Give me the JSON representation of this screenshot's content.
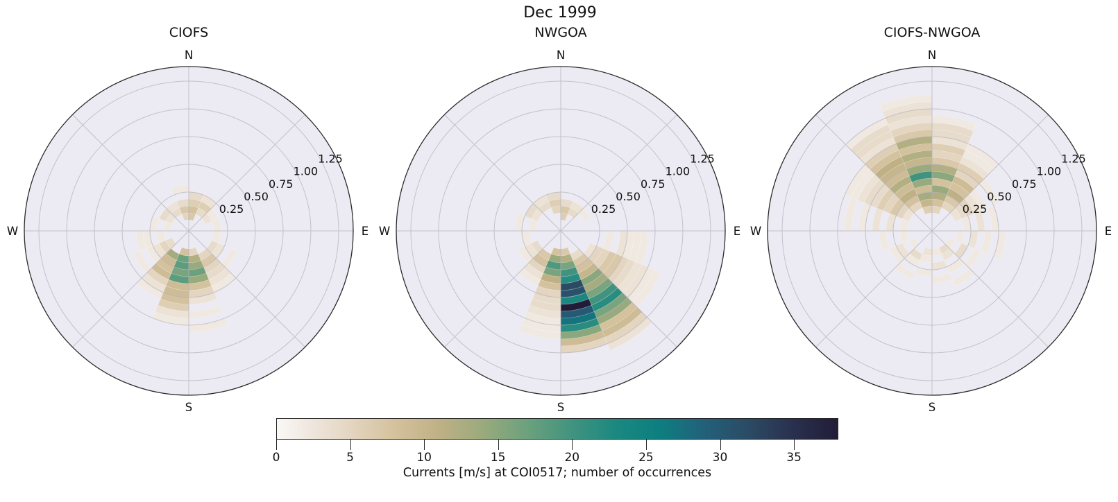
{
  "figure": {
    "suptitle": "Dec 1999"
  },
  "style": {
    "polar_bg": "#eceaf2",
    "grid_color": "#a9a7b2",
    "spine_color": "#2b2b2b",
    "text_color": "#111111",
    "figure_bg": "#ffffff"
  },
  "compass": {
    "n": "N",
    "e": "E",
    "s": "S",
    "w": "W"
  },
  "radial_tick_labels": [
    "0.25",
    "0.50",
    "0.75",
    "1.00",
    "1.25"
  ],
  "colorbar": {
    "label": "Currents [m/s] at COI0517; number of occurrences",
    "ticks": [
      0,
      5,
      10,
      15,
      20,
      25,
      30,
      35
    ],
    "vmin": 0,
    "vmax": 38,
    "stops": [
      [
        0,
        "#faf8f6"
      ],
      [
        2,
        "#f0e9e1"
      ],
      [
        5,
        "#e3d5c0"
      ],
      [
        8,
        "#d4c19d"
      ],
      [
        11,
        "#bfb185"
      ],
      [
        14,
        "#99aa7d"
      ],
      [
        17,
        "#6ba17d"
      ],
      [
        20,
        "#41937f"
      ],
      [
        23,
        "#1b8880"
      ],
      [
        26,
        "#0d7e80"
      ],
      [
        29,
        "#23607a"
      ],
      [
        32,
        "#2b4a64"
      ],
      [
        35,
        "#29304e"
      ],
      [
        38,
        "#211d38"
      ]
    ]
  },
  "chart_data": [
    {
      "type": "heatmap",
      "subtype": "polar-2d-histogram",
      "title": "CIOFS",
      "direction_bin_deg": 22.5,
      "speed_bin_size": 0.0625,
      "radial_axis": {
        "ticks": [
          0.25,
          0.5,
          0.75,
          1.0,
          1.25
        ],
        "rmax": 1.4,
        "rorigin": -0.1
      },
      "note": "cells = [direction_bin (0 = N-to-NNE, clockwise, 16 bins), speed_bin (x0.0625 m/s), occurrences]",
      "cells": [
        [
          8,
          1,
          8
        ],
        [
          8,
          2,
          17
        ],
        [
          8,
          3,
          18
        ],
        [
          8,
          4,
          16
        ],
        [
          8,
          5,
          18
        ],
        [
          8,
          6,
          9
        ],
        [
          8,
          7,
          9
        ],
        [
          8,
          8,
          8
        ],
        [
          8,
          9,
          6
        ],
        [
          8,
          10,
          3
        ],
        [
          8,
          11,
          2
        ],
        [
          7,
          1,
          5
        ],
        [
          7,
          2,
          12
        ],
        [
          7,
          3,
          14
        ],
        [
          7,
          4,
          17
        ],
        [
          7,
          5,
          14
        ],
        [
          7,
          6,
          8
        ],
        [
          7,
          7,
          5
        ],
        [
          7,
          8,
          3
        ],
        [
          7,
          10,
          2
        ],
        [
          7,
          12,
          2
        ],
        [
          9,
          2,
          13
        ],
        [
          9,
          3,
          9
        ],
        [
          9,
          4,
          8
        ],
        [
          9,
          5,
          9
        ],
        [
          9,
          6,
          5
        ],
        [
          9,
          7,
          3
        ],
        [
          9,
          8,
          2
        ],
        [
          6,
          2,
          5
        ],
        [
          6,
          3,
          7
        ],
        [
          6,
          4,
          5
        ],
        [
          6,
          5,
          4
        ],
        [
          6,
          6,
          3
        ],
        [
          6,
          7,
          2
        ],
        [
          10,
          1,
          4
        ],
        [
          10,
          2,
          5
        ],
        [
          10,
          3,
          3
        ],
        [
          10,
          4,
          2
        ],
        [
          10,
          6,
          2
        ],
        [
          11,
          2,
          2
        ],
        [
          11,
          4,
          2
        ],
        [
          11,
          5,
          2
        ],
        [
          5,
          2,
          4
        ],
        [
          5,
          3,
          3
        ],
        [
          5,
          5,
          2
        ],
        [
          0,
          0,
          7
        ],
        [
          0,
          1,
          8
        ],
        [
          0,
          2,
          6
        ],
        [
          0,
          3,
          4
        ],
        [
          15,
          0,
          5
        ],
        [
          15,
          1,
          7
        ],
        [
          15,
          2,
          4
        ],
        [
          15,
          4,
          2
        ],
        [
          1,
          1,
          4
        ],
        [
          1,
          2,
          6
        ],
        [
          1,
          3,
          3
        ],
        [
          14,
          1,
          4
        ],
        [
          14,
          2,
          3
        ],
        [
          13,
          1,
          3
        ],
        [
          13,
          2,
          4
        ],
        [
          12,
          1,
          2
        ],
        [
          12,
          3,
          2
        ],
        [
          2,
          1,
          3
        ],
        [
          2,
          2,
          2
        ],
        [
          3,
          2,
          2
        ],
        [
          4,
          2,
          2
        ]
      ]
    },
    {
      "type": "heatmap",
      "subtype": "polar-2d-histogram",
      "title": "NWGOA",
      "direction_bin_deg": 22.5,
      "speed_bin_size": 0.0625,
      "radial_axis": {
        "ticks": [
          0.25,
          0.5,
          0.75,
          1.0,
          1.25
        ],
        "rmax": 1.4,
        "rorigin": -0.1
      },
      "cells": [
        [
          7,
          1,
          7
        ],
        [
          7,
          2,
          12
        ],
        [
          7,
          3,
          16
        ],
        [
          7,
          4,
          20
        ],
        [
          7,
          5,
          22
        ],
        [
          7,
          6,
          32
        ],
        [
          7,
          7,
          31
        ],
        [
          7,
          8,
          23
        ],
        [
          7,
          9,
          38
        ],
        [
          7,
          10,
          30
        ],
        [
          7,
          11,
          27
        ],
        [
          7,
          12,
          22
        ],
        [
          7,
          13,
          15
        ],
        [
          7,
          14,
          9
        ],
        [
          7,
          15,
          5
        ],
        [
          6,
          2,
          4
        ],
        [
          6,
          3,
          7
        ],
        [
          6,
          4,
          8
        ],
        [
          6,
          5,
          10
        ],
        [
          6,
          6,
          15
        ],
        [
          6,
          7,
          13
        ],
        [
          6,
          8,
          16
        ],
        [
          6,
          9,
          20
        ],
        [
          6,
          10,
          22
        ],
        [
          6,
          11,
          16
        ],
        [
          6,
          12,
          14
        ],
        [
          6,
          13,
          8
        ],
        [
          6,
          14,
          9
        ],
        [
          6,
          15,
          5
        ],
        [
          6,
          16,
          3
        ],
        [
          8,
          1,
          8
        ],
        [
          8,
          2,
          14
        ],
        [
          8,
          3,
          19
        ],
        [
          8,
          4,
          16
        ],
        [
          8,
          5,
          11
        ],
        [
          8,
          6,
          8
        ],
        [
          8,
          7,
          5
        ],
        [
          8,
          8,
          4
        ],
        [
          8,
          9,
          4
        ],
        [
          8,
          10,
          3
        ],
        [
          8,
          11,
          2
        ],
        [
          8,
          12,
          2
        ],
        [
          8,
          13,
          2
        ],
        [
          5,
          3,
          3
        ],
        [
          5,
          4,
          5
        ],
        [
          5,
          5,
          5
        ],
        [
          5,
          6,
          7
        ],
        [
          5,
          7,
          7
        ],
        [
          5,
          8,
          5
        ],
        [
          5,
          9,
          4
        ],
        [
          5,
          10,
          3
        ],
        [
          5,
          11,
          3
        ],
        [
          5,
          12,
          2
        ],
        [
          5,
          13,
          2
        ],
        [
          9,
          2,
          7
        ],
        [
          9,
          3,
          8
        ],
        [
          9,
          4,
          5
        ],
        [
          9,
          5,
          3
        ],
        [
          9,
          6,
          2
        ],
        [
          4,
          5,
          2
        ],
        [
          4,
          7,
          3
        ],
        [
          4,
          8,
          2
        ],
        [
          4,
          9,
          2
        ],
        [
          4,
          10,
          2
        ],
        [
          10,
          2,
          4
        ],
        [
          10,
          3,
          3
        ],
        [
          10,
          4,
          2
        ],
        [
          0,
          0,
          6
        ],
        [
          0,
          1,
          7
        ],
        [
          0,
          2,
          4
        ],
        [
          15,
          1,
          5
        ],
        [
          15,
          2,
          6
        ],
        [
          15,
          3,
          4
        ],
        [
          14,
          2,
          4
        ],
        [
          14,
          3,
          3
        ],
        [
          13,
          2,
          3
        ],
        [
          13,
          3,
          4
        ],
        [
          12,
          2,
          2
        ],
        [
          12,
          4,
          2
        ],
        [
          1,
          1,
          4
        ],
        [
          1,
          2,
          3
        ],
        [
          2,
          2,
          2
        ],
        [
          11,
          3,
          2
        ]
      ]
    },
    {
      "type": "heatmap",
      "subtype": "polar-2d-histogram",
      "title": "CIOFS-NWGOA",
      "direction_bin_deg": 22.5,
      "speed_bin_size": 0.0625,
      "radial_axis": {
        "ticks": [
          0.25,
          0.5,
          0.75,
          1.0,
          1.25
        ],
        "rmax": 1.4,
        "rorigin": -0.1
      },
      "cells": [
        [
          15,
          1,
          6
        ],
        [
          15,
          2,
          10
        ],
        [
          15,
          3,
          13
        ],
        [
          15,
          4,
          9
        ],
        [
          15,
          5,
          14
        ],
        [
          15,
          6,
          20
        ],
        [
          15,
          7,
          14
        ],
        [
          15,
          8,
          10
        ],
        [
          15,
          9,
          12
        ],
        [
          15,
          10,
          8
        ],
        [
          15,
          11,
          12
        ],
        [
          15,
          12,
          7
        ],
        [
          15,
          13,
          5
        ],
        [
          15,
          14,
          3
        ],
        [
          15,
          15,
          4
        ],
        [
          15,
          16,
          3
        ],
        [
          15,
          17,
          2
        ],
        [
          0,
          1,
          5
        ],
        [
          0,
          2,
          8
        ],
        [
          0,
          3,
          12
        ],
        [
          0,
          4,
          14
        ],
        [
          0,
          5,
          8
        ],
        [
          0,
          6,
          15
        ],
        [
          0,
          7,
          12
        ],
        [
          0,
          8,
          7
        ],
        [
          0,
          9,
          5
        ],
        [
          0,
          10,
          6
        ],
        [
          0,
          11,
          3
        ],
        [
          0,
          12,
          4
        ],
        [
          0,
          13,
          4
        ],
        [
          0,
          14,
          2
        ],
        [
          14,
          2,
          5
        ],
        [
          14,
          3,
          8
        ],
        [
          14,
          4,
          11
        ],
        [
          14,
          5,
          9
        ],
        [
          14,
          6,
          12
        ],
        [
          14,
          7,
          9
        ],
        [
          14,
          8,
          10
        ],
        [
          14,
          9,
          11
        ],
        [
          14,
          10,
          8
        ],
        [
          14,
          11,
          6
        ],
        [
          14,
          12,
          3
        ],
        [
          14,
          13,
          4
        ],
        [
          14,
          14,
          4
        ],
        [
          14,
          15,
          2
        ],
        [
          13,
          2,
          3
        ],
        [
          13,
          3,
          5
        ],
        [
          13,
          4,
          7
        ],
        [
          13,
          5,
          5
        ],
        [
          13,
          6,
          6
        ],
        [
          13,
          7,
          4
        ],
        [
          13,
          8,
          4
        ],
        [
          13,
          9,
          3
        ],
        [
          13,
          10,
          2
        ],
        [
          13,
          11,
          2
        ],
        [
          12,
          2,
          2
        ],
        [
          12,
          4,
          3
        ],
        [
          12,
          6,
          3
        ],
        [
          12,
          8,
          2
        ],
        [
          12,
          10,
          2
        ],
        [
          1,
          2,
          5
        ],
        [
          1,
          3,
          7
        ],
        [
          1,
          4,
          11
        ],
        [
          1,
          5,
          8
        ],
        [
          1,
          6,
          9
        ],
        [
          1,
          7,
          5
        ],
        [
          1,
          8,
          6
        ],
        [
          1,
          9,
          3
        ],
        [
          1,
          10,
          2
        ],
        [
          1,
          11,
          2
        ],
        [
          2,
          2,
          3
        ],
        [
          2,
          3,
          4
        ],
        [
          2,
          4,
          5
        ],
        [
          2,
          5,
          3
        ],
        [
          2,
          6,
          2
        ],
        [
          2,
          8,
          2
        ],
        [
          3,
          3,
          2
        ],
        [
          3,
          5,
          3
        ],
        [
          3,
          7,
          2
        ],
        [
          4,
          2,
          2
        ],
        [
          4,
          4,
          3
        ],
        [
          4,
          6,
          2
        ],
        [
          4,
          8,
          2
        ],
        [
          5,
          1,
          2
        ],
        [
          5,
          3,
          4
        ],
        [
          5,
          5,
          2
        ],
        [
          6,
          1,
          4
        ],
        [
          6,
          2,
          3
        ],
        [
          6,
          4,
          2
        ],
        [
          6,
          6,
          2
        ],
        [
          7,
          1,
          2
        ],
        [
          7,
          3,
          3
        ],
        [
          7,
          5,
          2
        ],
        [
          8,
          1,
          3
        ],
        [
          8,
          2,
          2
        ],
        [
          8,
          4,
          2
        ],
        [
          9,
          2,
          4
        ],
        [
          9,
          3,
          2
        ],
        [
          9,
          5,
          2
        ],
        [
          10,
          1,
          2
        ],
        [
          10,
          3,
          3
        ],
        [
          10,
          4,
          2
        ],
        [
          11,
          2,
          2
        ],
        [
          11,
          5,
          2
        ]
      ]
    }
  ]
}
